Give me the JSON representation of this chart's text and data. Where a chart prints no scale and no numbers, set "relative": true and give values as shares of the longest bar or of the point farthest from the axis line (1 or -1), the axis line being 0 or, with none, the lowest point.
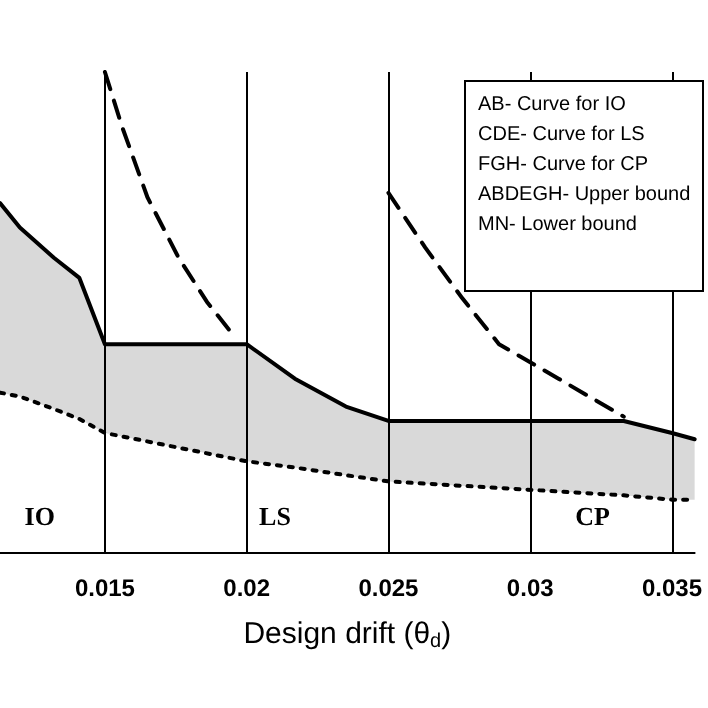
{
  "chart_data": {
    "type": "line",
    "relative": true,
    "xlabel": "Design drift (θ$_{d}$)",
    "xlim": [
      0.0113,
      0.0358
    ],
    "xticks": [
      0.015,
      0.02,
      0.025,
      0.03,
      0.035
    ],
    "grid": "x",
    "marker": "none",
    "series": [
      {
        "color": "#000000",
        "line_style": "solid",
        "x": [
          0.0113,
          0.012,
          0.0132,
          0.0141,
          0.015,
          0.02,
          0.0217,
          0.0235,
          0.025,
          0.0333,
          0.035,
          0.0358
        ],
        "values": [
          0.727,
          0.676,
          0.613,
          0.571,
          0.433,
          0.433,
          0.361,
          0.303,
          0.273,
          0.273,
          0.248,
          0.235
        ],
        "lower": [
          0.332,
          0.324,
          0.298,
          0.277,
          0.248,
          0.189,
          0.176,
          0.16,
          0.147,
          0.118,
          0.109,
          0.109
        ],
        "upper": [
          0.727,
          0.676,
          0.613,
          0.571,
          0.433,
          0.433,
          0.361,
          0.303,
          0.273,
          0.273,
          0.248,
          0.235
        ]
      },
      {
        "color": "#000000",
        "line_style": "dotted",
        "x": [
          0.0113,
          0.012,
          0.0132,
          0.0141,
          0.015,
          0.02,
          0.0217,
          0.0235,
          0.025,
          0.0333,
          0.035,
          0.0358
        ],
        "values": [
          0.332,
          0.324,
          0.298,
          0.277,
          0.248,
          0.189,
          0.176,
          0.16,
          0.147,
          0.118,
          0.109,
          0.109
        ]
      },
      {
        "color": "#000000",
        "line_style": "dashed",
        "x": [
          0.015,
          0.0156,
          0.0165,
          0.0176,
          0.0186,
          0.0195
        ],
        "values": [
          1,
          0.887,
          0.739,
          0.613,
          0.521,
          0.454
        ]
      },
      {
        "color": "#000000",
        "line_style": "dashed",
        "x": [
          0.025,
          0.0263,
          0.0276,
          0.0289,
          0.031,
          0.0333
        ],
        "values": [
          0.748,
          0.634,
          0.529,
          0.433,
          0.361,
          0.282
        ]
      }
    ],
    "annotations": [
      "AB- Curve for IO",
      "CDE- Curve for LS",
      "FGH- Curve for CP",
      "ABDEGH- Upper bound",
      "MN- Lower bound",
      {
        "text": "IO",
        "x": 0.0127,
        "y": 0.076
      },
      {
        "text": "LS",
        "x": 0.021,
        "y": 0.076
      },
      {
        "text": "CP",
        "x": 0.0322,
        "y": 0.076
      }
    ]
  }
}
